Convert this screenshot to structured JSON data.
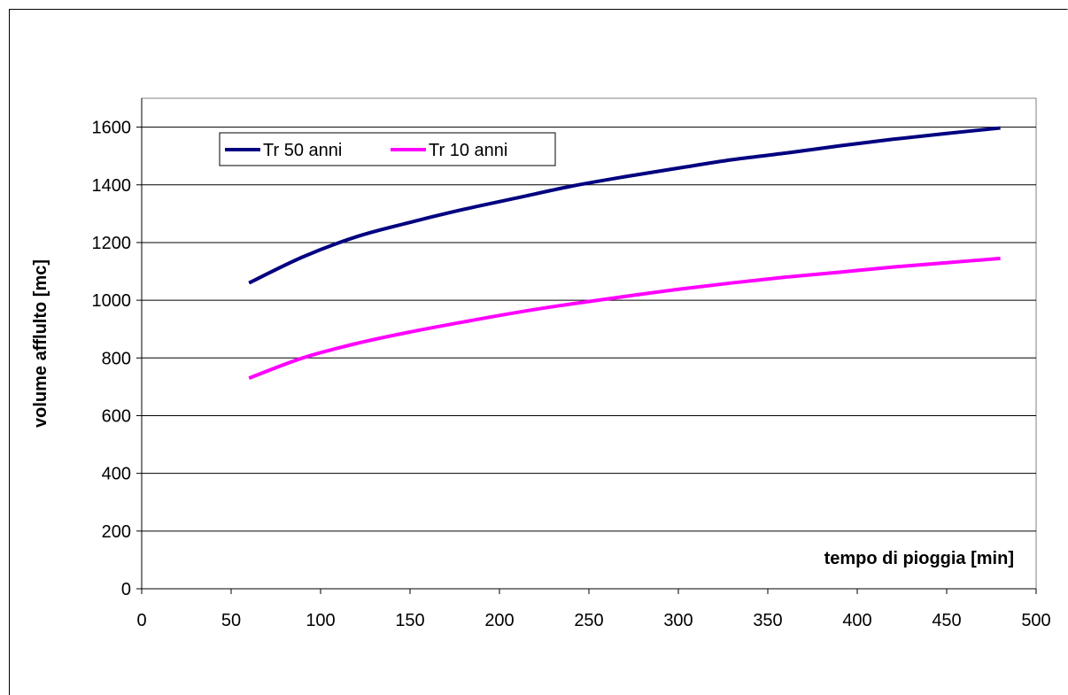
{
  "chart_data": {
    "type": "line",
    "title": "",
    "xlabel": "tempo di pioggia [min]",
    "ylabel": "volume afflulto [mc]",
    "xlim": [
      0,
      500
    ],
    "ylim": [
      0,
      1700
    ],
    "xticks": [
      0,
      50,
      100,
      150,
      200,
      250,
      300,
      350,
      400,
      450,
      500
    ],
    "yticks": [
      0,
      200,
      400,
      600,
      800,
      1000,
      1200,
      1400,
      1600
    ],
    "grid": "horizontal",
    "legend_position": "top-left",
    "x": [
      60,
      90,
      120,
      150,
      180,
      210,
      240,
      270,
      300,
      330,
      360,
      390,
      420,
      450,
      480
    ],
    "series": [
      {
        "name": "Tr 50 anni",
        "color": "#000080",
        "values": [
          1060,
          1150,
          1220,
          1270,
          1315,
          1355,
          1395,
          1428,
          1458,
          1487,
          1510,
          1535,
          1558,
          1578,
          1597
        ]
      },
      {
        "name": "Tr 10 anni",
        "color": "#ff00ff",
        "values": [
          730,
          800,
          850,
          890,
          925,
          958,
          987,
          1013,
          1038,
          1060,
          1080,
          1097,
          1115,
          1130,
          1145
        ]
      }
    ]
  }
}
